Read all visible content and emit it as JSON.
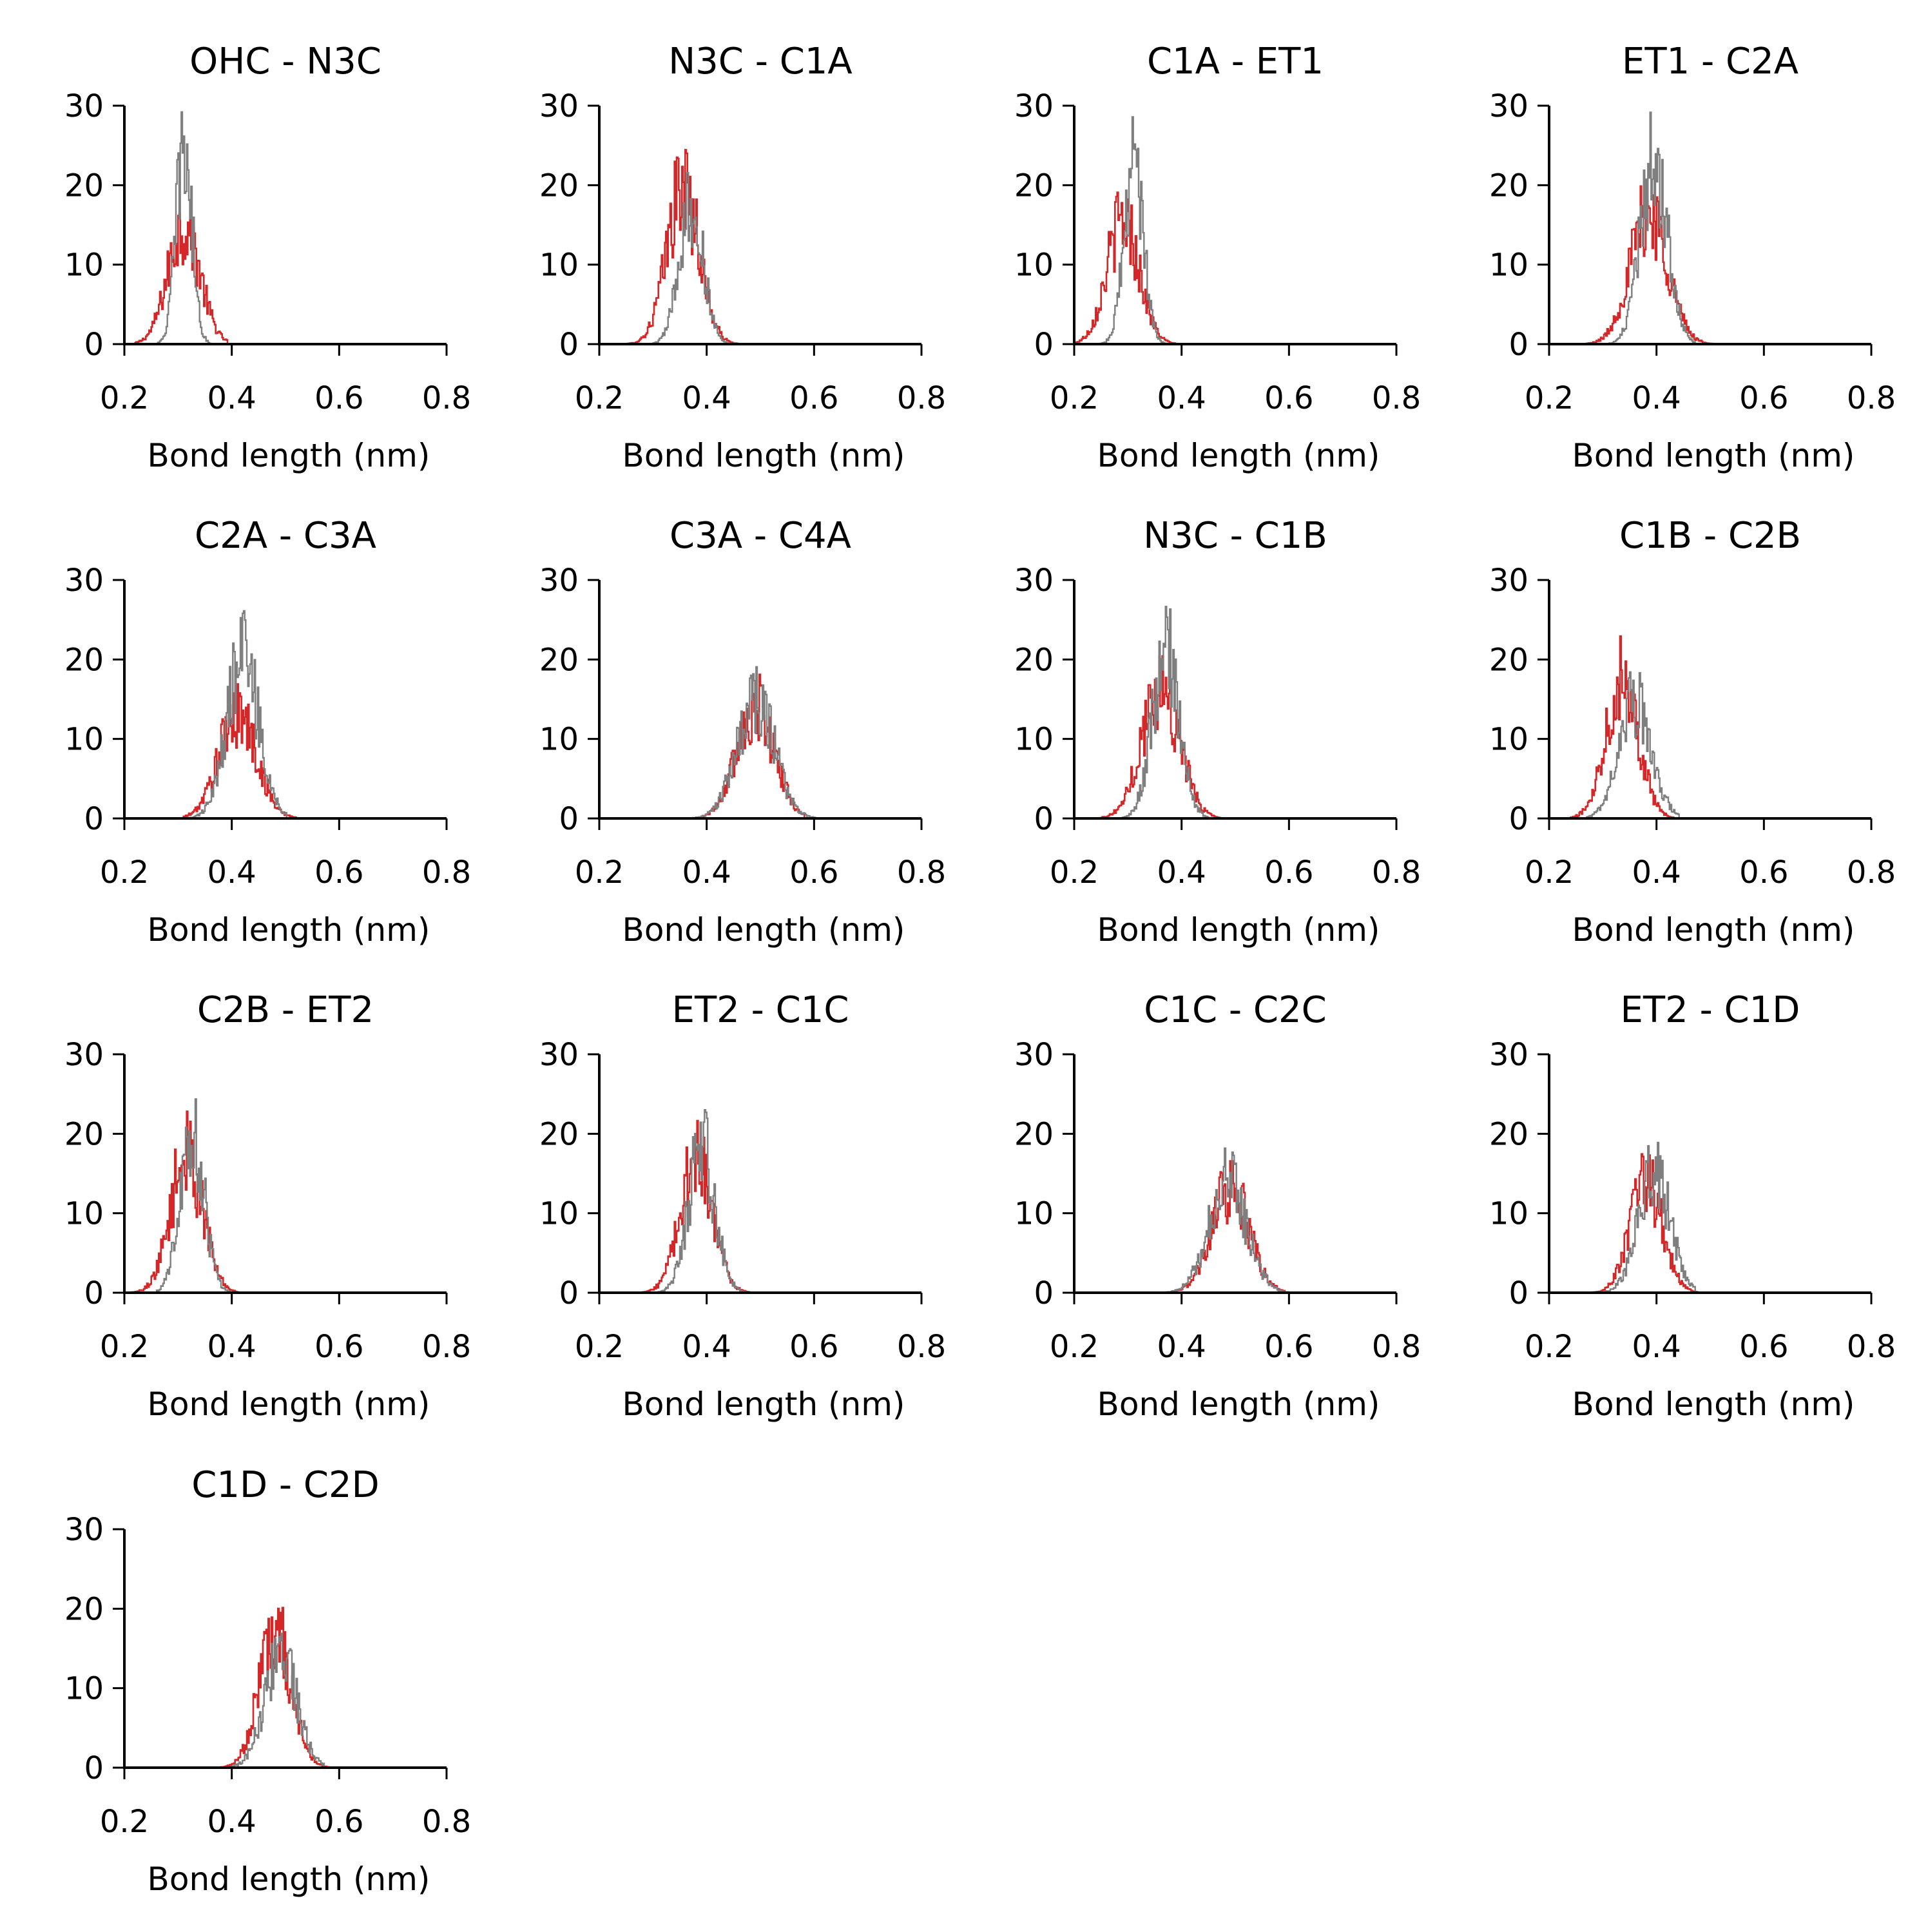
{
  "colors": {
    "series_a": "#d62728",
    "series_b": "#7f7f7f",
    "axis": "#000000"
  },
  "chart_data": [
    {
      "type": "line",
      "title": "OHC - N3C",
      "xlabel": "Bond length (nm)",
      "ylabel": "",
      "xlim": [
        0.2,
        0.8
      ],
      "ylim": [
        0,
        30
      ],
      "xticks": [
        "0.2",
        "0.4",
        "0.6",
        "0.8"
      ],
      "yticks": [
        "0",
        "10",
        "20",
        "30"
      ],
      "grid": false,
      "series": [
        {
          "color": "#d62728",
          "mean": 0.31,
          "sd": 0.03,
          "peak": 18,
          "min": 0.22,
          "max": 0.39
        },
        {
          "color": "#7f7f7f",
          "mean": 0.31,
          "sd": 0.015,
          "peak": 30,
          "min": 0.25,
          "max": 0.37
        }
      ]
    },
    {
      "type": "line",
      "title": "N3C - C1A",
      "xlabel": "Bond length (nm)",
      "ylabel": "",
      "xlim": [
        0.2,
        0.8
      ],
      "ylim": [
        0,
        30
      ],
      "xticks": [
        "0.2",
        "0.4",
        "0.6",
        "0.8"
      ],
      "yticks": [
        "0",
        "10",
        "20",
        "30"
      ],
      "grid": false,
      "series": [
        {
          "color": "#d62728",
          "mean": 0.355,
          "sd": 0.03,
          "peak": 24,
          "min": 0.23,
          "max": 0.46
        },
        {
          "color": "#7f7f7f",
          "mean": 0.37,
          "sd": 0.022,
          "peak": 22,
          "min": 0.3,
          "max": 0.44
        }
      ]
    },
    {
      "type": "line",
      "title": "C1A - ET1",
      "xlabel": "Bond length (nm)",
      "ylabel": "",
      "xlim": [
        0.2,
        0.8
      ],
      "ylim": [
        0,
        30
      ],
      "xticks": [
        "0.2",
        "0.4",
        "0.6",
        "0.8"
      ],
      "yticks": [
        "0",
        "10",
        "20",
        "30"
      ],
      "grid": false,
      "series": [
        {
          "color": "#d62728",
          "mean": 0.29,
          "sd": 0.03,
          "peak": 19,
          "min": 0.2,
          "max": 0.4
        },
        {
          "color": "#7f7f7f",
          "mean": 0.31,
          "sd": 0.018,
          "peak": 27,
          "min": 0.24,
          "max": 0.37
        }
      ]
    },
    {
      "type": "line",
      "title": "ET1 - C2A",
      "xlabel": "Bond length (nm)",
      "ylabel": "",
      "xlim": [
        0.2,
        0.8
      ],
      "ylim": [
        0,
        30
      ],
      "xticks": [
        "0.2",
        "0.4",
        "0.6",
        "0.8"
      ],
      "yticks": [
        "0",
        "10",
        "20",
        "30"
      ],
      "grid": false,
      "series": [
        {
          "color": "#d62728",
          "mean": 0.385,
          "sd": 0.035,
          "peak": 20,
          "min": 0.25,
          "max": 0.51
        },
        {
          "color": "#7f7f7f",
          "mean": 0.395,
          "sd": 0.025,
          "peak": 29,
          "min": 0.3,
          "max": 0.47
        }
      ]
    },
    {
      "type": "line",
      "title": "C2A - C3A",
      "xlabel": "Bond length (nm)",
      "ylabel": "",
      "xlim": [
        0.2,
        0.8
      ],
      "ylim": [
        0,
        30
      ],
      "xticks": [
        "0.2",
        "0.4",
        "0.6",
        "0.8"
      ],
      "yticks": [
        "0",
        "10",
        "20",
        "30"
      ],
      "grid": false,
      "series": [
        {
          "color": "#d62728",
          "mean": 0.41,
          "sd": 0.035,
          "peak": 16,
          "min": 0.31,
          "max": 0.52
        },
        {
          "color": "#7f7f7f",
          "mean": 0.42,
          "sd": 0.03,
          "peak": 24,
          "min": 0.31,
          "max": 0.5
        }
      ]
    },
    {
      "type": "line",
      "title": "C3A - C4A",
      "xlabel": "Bond length (nm)",
      "ylabel": "",
      "xlim": [
        0.2,
        0.8
      ],
      "ylim": [
        0,
        30
      ],
      "xticks": [
        "0.2",
        "0.4",
        "0.6",
        "0.8"
      ],
      "yticks": [
        "0",
        "10",
        "20",
        "30"
      ],
      "grid": false,
      "series": [
        {
          "color": "#d62728",
          "mean": 0.49,
          "sd": 0.035,
          "peak": 17,
          "min": 0.38,
          "max": 0.58
        },
        {
          "color": "#7f7f7f",
          "mean": 0.49,
          "sd": 0.035,
          "peak": 18,
          "min": 0.35,
          "max": 0.6
        }
      ]
    },
    {
      "type": "line",
      "title": "N3C - C1B",
      "xlabel": "Bond length (nm)",
      "ylabel": "",
      "xlim": [
        0.2,
        0.8
      ],
      "ylim": [
        0,
        30
      ],
      "xticks": [
        "0.2",
        "0.4",
        "0.6",
        "0.8"
      ],
      "yticks": [
        "0",
        "10",
        "20",
        "30"
      ],
      "grid": false,
      "series": [
        {
          "color": "#d62728",
          "mean": 0.36,
          "sd": 0.035,
          "peak": 20,
          "min": 0.22,
          "max": 0.47
        },
        {
          "color": "#7f7f7f",
          "mean": 0.37,
          "sd": 0.025,
          "peak": 26,
          "min": 0.29,
          "max": 0.45
        }
      ]
    },
    {
      "type": "line",
      "title": "C1B - C2B",
      "xlabel": "Bond length (nm)",
      "ylabel": "",
      "xlim": [
        0.2,
        0.8
      ],
      "ylim": [
        0,
        30
      ],
      "xticks": [
        "0.2",
        "0.4",
        "0.6",
        "0.8"
      ],
      "yticks": [
        "0",
        "10",
        "20",
        "30"
      ],
      "grid": false,
      "series": [
        {
          "color": "#d62728",
          "mean": 0.335,
          "sd": 0.03,
          "peak": 22,
          "min": 0.24,
          "max": 0.43
        },
        {
          "color": "#7f7f7f",
          "mean": 0.36,
          "sd": 0.03,
          "peak": 18,
          "min": 0.27,
          "max": 0.44
        }
      ]
    },
    {
      "type": "line",
      "title": "C2B - ET2",
      "xlabel": "Bond length (nm)",
      "ylabel": "",
      "xlim": [
        0.2,
        0.8
      ],
      "ylim": [
        0,
        30
      ],
      "xticks": [
        "0.2",
        "0.4",
        "0.6",
        "0.8"
      ],
      "yticks": [
        "0",
        "10",
        "20",
        "30"
      ],
      "grid": false,
      "series": [
        {
          "color": "#d62728",
          "mean": 0.315,
          "sd": 0.03,
          "peak": 21,
          "min": 0.2,
          "max": 0.41
        },
        {
          "color": "#7f7f7f",
          "mean": 0.325,
          "sd": 0.022,
          "peak": 25,
          "min": 0.26,
          "max": 0.4
        }
      ]
    },
    {
      "type": "line",
      "title": "ET2 - C1C",
      "xlabel": "Bond length (nm)",
      "ylabel": "",
      "xlim": [
        0.2,
        0.8
      ],
      "ylim": [
        0,
        30
      ],
      "xticks": [
        "0.2",
        "0.4",
        "0.6",
        "0.8"
      ],
      "yticks": [
        "0",
        "10",
        "20",
        "30"
      ],
      "grid": false,
      "series": [
        {
          "color": "#d62728",
          "mean": 0.38,
          "sd": 0.03,
          "peak": 20,
          "min": 0.25,
          "max": 0.48
        },
        {
          "color": "#7f7f7f",
          "mean": 0.39,
          "sd": 0.025,
          "peak": 22,
          "min": 0.31,
          "max": 0.47
        }
      ]
    },
    {
      "type": "line",
      "title": "C1C - C2C",
      "xlabel": "Bond length (nm)",
      "ylabel": "",
      "xlim": [
        0.2,
        0.8
      ],
      "ylim": [
        0,
        30
      ],
      "xticks": [
        "0.2",
        "0.4",
        "0.6",
        "0.8"
      ],
      "yticks": [
        "0",
        "10",
        "20",
        "30"
      ],
      "grid": false,
      "series": [
        {
          "color": "#d62728",
          "mean": 0.49,
          "sd": 0.035,
          "peak": 16,
          "min": 0.38,
          "max": 0.59
        },
        {
          "color": "#7f7f7f",
          "mean": 0.485,
          "sd": 0.035,
          "peak": 17,
          "min": 0.36,
          "max": 0.6
        }
      ]
    },
    {
      "type": "line",
      "title": "ET2 - C1D",
      "xlabel": "Bond length (nm)",
      "ylabel": "",
      "xlim": [
        0.2,
        0.8
      ],
      "ylim": [
        0,
        30
      ],
      "xticks": [
        "0.2",
        "0.4",
        "0.6",
        "0.8"
      ],
      "yticks": [
        "0",
        "10",
        "20",
        "30"
      ],
      "grid": false,
      "series": [
        {
          "color": "#d62728",
          "mean": 0.38,
          "sd": 0.03,
          "peak": 17,
          "min": 0.27,
          "max": 0.48
        },
        {
          "color": "#7f7f7f",
          "mean": 0.395,
          "sd": 0.03,
          "peak": 18,
          "min": 0.29,
          "max": 0.47
        }
      ]
    },
    {
      "type": "line",
      "title": "C1D - C2D",
      "xlabel": "Bond length (nm)",
      "ylabel": "",
      "xlim": [
        0.2,
        0.8
      ],
      "ylim": [
        0,
        30
      ],
      "xticks": [
        "0.2",
        "0.4",
        "0.6",
        "0.8"
      ],
      "yticks": [
        "0",
        "10",
        "20",
        "30"
      ],
      "grid": false,
      "series": [
        {
          "color": "#d62728",
          "mean": 0.48,
          "sd": 0.03,
          "peak": 21,
          "min": 0.36,
          "max": 0.58
        },
        {
          "color": "#7f7f7f",
          "mean": 0.49,
          "sd": 0.03,
          "peak": 17,
          "min": 0.34,
          "max": 0.57
        }
      ]
    }
  ]
}
